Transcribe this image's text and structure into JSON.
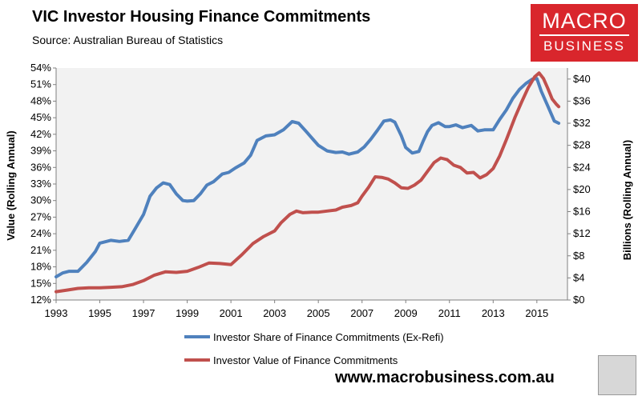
{
  "header": {
    "title": "VIC Investor Housing Finance Commitments",
    "subtitle": "Source: Australian Bureau of Statistics"
  },
  "logo": {
    "line1": "MACRO",
    "line2": "BUSINESS"
  },
  "footer": {
    "website": "www.macrobusiness.com.au"
  },
  "colors": {
    "share": "#4f81bd",
    "value": "#c0504d",
    "plot_bg": "#f2f2f2",
    "brand": "#d9262c"
  },
  "chart_data": {
    "type": "line",
    "title": "VIC Investor Housing Finance Commitments",
    "subtitle": "Source: Australian Bureau of Statistics",
    "xlabel": "",
    "ylabel_left": "Value (Rolling Annual)",
    "ylabel_right": "Billions (Rolling Annual)",
    "xlim": [
      1993,
      2016.4
    ],
    "ylim_left": [
      12,
      54
    ],
    "ylim_right": [
      0,
      42
    ],
    "x_ticks": [
      "1993",
      "1995",
      "1997",
      "1999",
      "2001",
      "2003",
      "2005",
      "2007",
      "2009",
      "2011",
      "2013",
      "2015"
    ],
    "y_left_ticks": [
      "12%",
      "15%",
      "18%",
      "21%",
      "24%",
      "27%",
      "30%",
      "33%",
      "36%",
      "39%",
      "42%",
      "45%",
      "48%",
      "51%",
      "54%"
    ],
    "y_right_ticks": [
      "$0",
      "$4",
      "$8",
      "$12",
      "$16",
      "$20",
      "$24",
      "$28",
      "$32",
      "$36",
      "$40"
    ],
    "legend_position": "bottom",
    "series": [
      {
        "name": "Investor Share of Finance Commitments (Ex-Refi)",
        "axis": "left",
        "x": [
          1993.0,
          1993.3,
          1993.6,
          1994.0,
          1994.4,
          1994.8,
          1995.0,
          1995.5,
          1995.9,
          1996.3,
          1996.6,
          1997.0,
          1997.3,
          1997.6,
          1997.9,
          1998.2,
          1998.5,
          1998.8,
          1999.0,
          1999.3,
          1999.6,
          1999.9,
          2000.2,
          2000.6,
          2000.9,
          2001.2,
          2001.6,
          2001.9,
          2002.2,
          2002.6,
          2003.0,
          2003.4,
          2003.8,
          2004.1,
          2004.4,
          2004.8,
          2005.0,
          2005.4,
          2005.8,
          2006.1,
          2006.4,
          2006.8,
          2007.1,
          2007.4,
          2007.7,
          2008.0,
          2008.3,
          2008.5,
          2008.8,
          2009.0,
          2009.3,
          2009.6,
          2009.8,
          2010.0,
          2010.2,
          2010.5,
          2010.8,
          2011.0,
          2011.3,
          2011.6,
          2012.0,
          2012.3,
          2012.6,
          2013.0,
          2013.3,
          2013.6,
          2013.9,
          2014.2,
          2014.5,
          2014.8,
          2015.0,
          2015.2,
          2015.5,
          2015.8,
          2016.0
        ],
        "values": [
          16.2,
          16.9,
          17.2,
          17.2,
          18.8,
          20.8,
          22.3,
          22.8,
          22.6,
          22.8,
          24.8,
          27.5,
          30.8,
          32.3,
          33.2,
          32.9,
          31.2,
          30.0,
          29.9,
          30.0,
          31.2,
          32.8,
          33.4,
          34.8,
          35.1,
          35.9,
          36.8,
          38.2,
          40.9,
          41.7,
          41.9,
          42.8,
          44.3,
          44.0,
          42.7,
          40.9,
          40.0,
          39.0,
          38.7,
          38.8,
          38.4,
          38.8,
          39.7,
          41.1,
          42.7,
          44.4,
          44.6,
          44.2,
          41.7,
          39.6,
          38.6,
          38.9,
          40.8,
          42.5,
          43.6,
          44.1,
          43.4,
          43.4,
          43.7,
          43.2,
          43.6,
          42.6,
          42.8,
          42.8,
          44.7,
          46.4,
          48.5,
          50.1,
          51.2,
          52.0,
          52.1,
          49.8,
          47.1,
          44.4,
          44.0
        ]
      },
      {
        "name": "Investor Value of Finance Commitments",
        "axis": "right",
        "x": [
          1993.0,
          1993.5,
          1994.0,
          1994.5,
          1995.0,
          1995.5,
          1996.0,
          1996.5,
          1997.0,
          1997.5,
          1998.0,
          1998.5,
          1999.0,
          1999.5,
          2000.0,
          2000.5,
          2001.0,
          2001.5,
          2002.0,
          2002.5,
          2003.0,
          2003.3,
          2003.7,
          2004.0,
          2004.3,
          2004.7,
          2005.0,
          2005.4,
          2005.8,
          2006.1,
          2006.5,
          2006.8,
          2007.0,
          2007.3,
          2007.6,
          2007.9,
          2008.2,
          2008.5,
          2008.8,
          2009.1,
          2009.4,
          2009.7,
          2010.0,
          2010.3,
          2010.6,
          2010.9,
          2011.2,
          2011.5,
          2011.8,
          2012.1,
          2012.4,
          2012.7,
          2013.0,
          2013.3,
          2013.6,
          2014.0,
          2014.3,
          2014.6,
          2014.9,
          2015.1,
          2015.3,
          2015.5,
          2015.7,
          2015.9,
          2016.0
        ],
        "values": [
          1.5,
          1.8,
          2.1,
          2.2,
          2.2,
          2.3,
          2.4,
          2.8,
          3.5,
          4.5,
          5.1,
          5.0,
          5.2,
          5.9,
          6.7,
          6.6,
          6.4,
          8.2,
          10.2,
          11.5,
          12.5,
          14.0,
          15.5,
          16.1,
          15.8,
          15.9,
          15.9,
          16.1,
          16.3,
          16.8,
          17.1,
          17.6,
          18.8,
          20.4,
          22.3,
          22.2,
          21.9,
          21.2,
          20.3,
          20.2,
          20.8,
          21.7,
          23.3,
          24.9,
          25.7,
          25.4,
          24.4,
          24.0,
          23.0,
          23.1,
          22.1,
          22.7,
          23.8,
          26.1,
          29.0,
          33.1,
          35.8,
          38.4,
          40.4,
          41.1,
          40.1,
          38.3,
          36.4,
          35.4,
          35.0
        ]
      }
    ]
  }
}
